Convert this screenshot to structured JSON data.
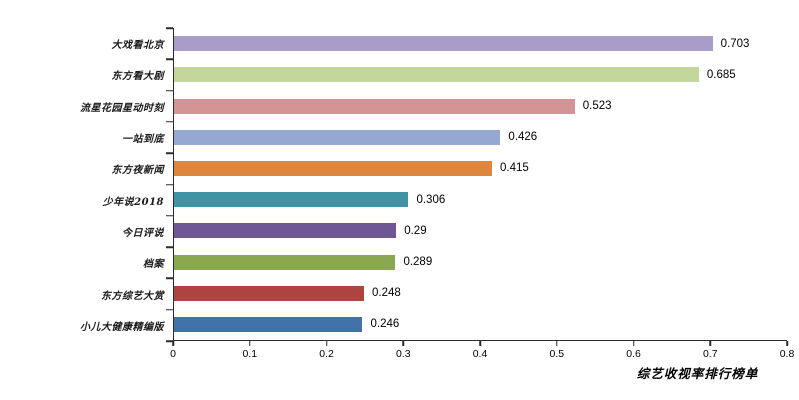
{
  "chart_data": {
    "type": "bar",
    "orientation": "horizontal",
    "title": "综艺收视率排行榜单",
    "categories": [
      "大戏看北京",
      "东方看大剧",
      "流星花园星动时刻",
      "一站到底",
      "东方夜新闻",
      "少年说2018",
      "今日评说",
      "档案",
      "东方综艺大赏",
      "小儿大健康精编版"
    ],
    "values": [
      0.703,
      0.685,
      0.523,
      0.426,
      0.415,
      0.306,
      0.29,
      0.289,
      0.248,
      0.246
    ],
    "value_labels": [
      "0.703",
      "0.685",
      "0.523",
      "0.426",
      "0.415",
      "0.306",
      "0.29",
      "0.289",
      "0.248",
      "0.246"
    ],
    "bar_colors": [
      "#aa9cc8",
      "#c3d69b",
      "#d29494",
      "#95a8d2",
      "#de863d",
      "#4292a6",
      "#6e5794",
      "#8aa84f",
      "#ad4442",
      "#4372a8"
    ],
    "xlim": [
      0,
      0.8
    ],
    "x_ticks": [
      "0",
      "0.1",
      "0.2",
      "0.3",
      "0.4",
      "0.5",
      "0.6",
      "0.7",
      "0.8"
    ],
    "grid": false,
    "legend": "none",
    "axis_color": "#2b2b2b",
    "background_color": "#ffffff"
  }
}
